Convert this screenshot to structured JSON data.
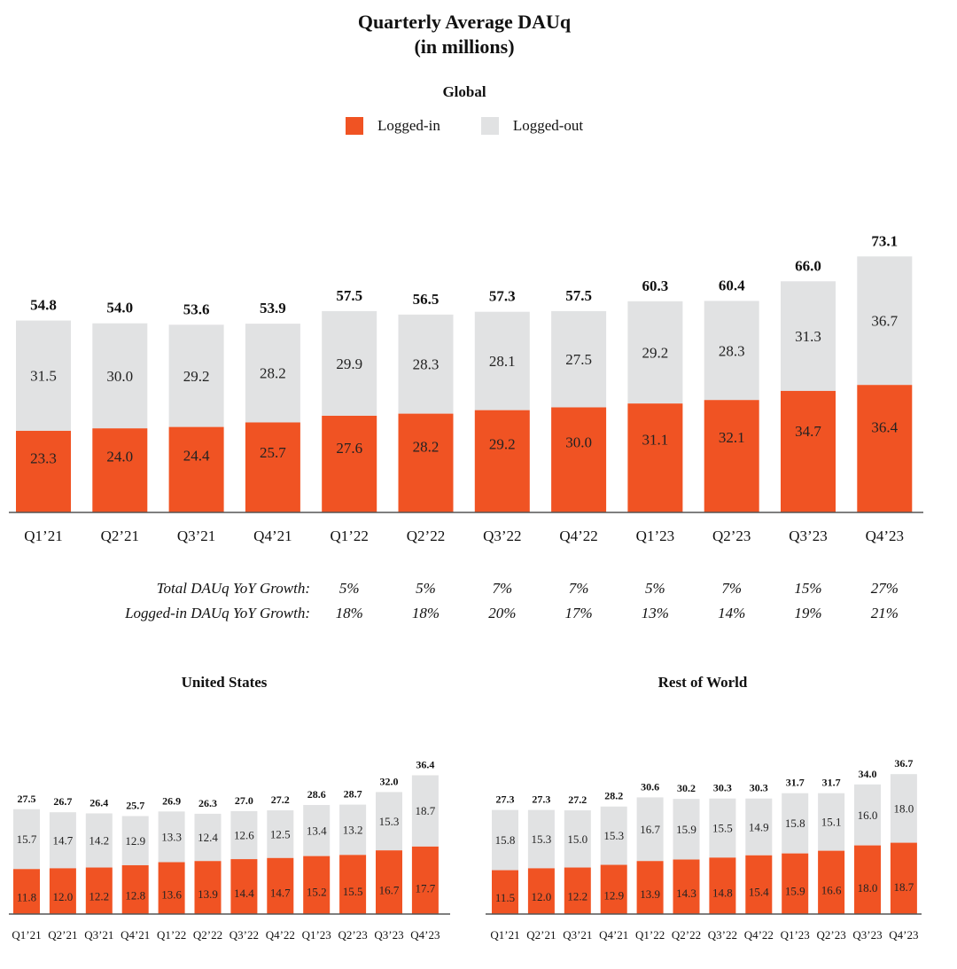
{
  "title_line1": "Quarterly Average DAUq",
  "title_line2": "(in millions)",
  "legend": {
    "logged_in": "Logged-in",
    "logged_out": "Logged-out"
  },
  "colors": {
    "logged_in": "#F05323",
    "logged_out": "#E1E2E3",
    "axis": "#555555"
  },
  "chart_data": [
    {
      "type": "bar",
      "stacked": true,
      "title": "Global",
      "categories": [
        "Q1’21",
        "Q2’21",
        "Q3’21",
        "Q4’21",
        "Q1’22",
        "Q2’22",
        "Q3’22",
        "Q4’22",
        "Q1’23",
        "Q2’23",
        "Q3’23",
        "Q4’23"
      ],
      "series": [
        {
          "name": "Logged-in",
          "values": [
            23.3,
            24.0,
            24.4,
            25.7,
            27.6,
            28.2,
            29.2,
            30.0,
            31.1,
            32.1,
            34.7,
            36.4
          ]
        },
        {
          "name": "Logged-out",
          "values": [
            31.5,
            30.0,
            29.2,
            28.2,
            29.9,
            28.3,
            28.1,
            27.5,
            29.2,
            28.3,
            31.3,
            36.7
          ]
        }
      ],
      "totals": [
        54.8,
        54.0,
        53.6,
        53.9,
        57.5,
        56.5,
        57.3,
        57.5,
        60.3,
        60.4,
        66.0,
        73.1
      ]
    },
    {
      "type": "bar",
      "stacked": true,
      "title": "United States",
      "categories": [
        "Q1’21",
        "Q2’21",
        "Q3’21",
        "Q4’21",
        "Q1’22",
        "Q2’22",
        "Q3’22",
        "Q4’22",
        "Q1’23",
        "Q2’23",
        "Q3’23",
        "Q4’23"
      ],
      "series": [
        {
          "name": "Logged-in",
          "values": [
            11.8,
            12.0,
            12.2,
            12.8,
            13.6,
            13.9,
            14.4,
            14.7,
            15.2,
            15.5,
            16.7,
            17.7
          ]
        },
        {
          "name": "Logged-out",
          "values": [
            15.7,
            14.7,
            14.2,
            12.9,
            13.3,
            12.4,
            12.6,
            12.5,
            13.4,
            13.2,
            15.3,
            18.7
          ]
        }
      ],
      "totals": [
        27.5,
        26.7,
        26.4,
        25.7,
        26.9,
        26.3,
        27.0,
        27.2,
        28.6,
        28.7,
        32.0,
        36.4
      ]
    },
    {
      "type": "bar",
      "stacked": true,
      "title": "Rest of World",
      "categories": [
        "Q1’21",
        "Q2’21",
        "Q3’21",
        "Q4’21",
        "Q1’22",
        "Q2’22",
        "Q3’22",
        "Q4’22",
        "Q1’23",
        "Q2’23",
        "Q3’23",
        "Q4’23"
      ],
      "series": [
        {
          "name": "Logged-in",
          "values": [
            11.5,
            12.0,
            12.2,
            12.9,
            13.9,
            14.3,
            14.8,
            15.4,
            15.9,
            16.6,
            18.0,
            18.7
          ]
        },
        {
          "name": "Logged-out",
          "values": [
            15.8,
            15.3,
            15.0,
            15.3,
            16.7,
            15.9,
            15.5,
            14.9,
            15.8,
            15.1,
            16.0,
            18.0
          ]
        }
      ],
      "totals": [
        27.3,
        27.3,
        27.2,
        28.2,
        30.6,
        30.2,
        30.3,
        30.3,
        31.7,
        31.7,
        34.0,
        36.7
      ]
    }
  ],
  "growth": {
    "total_label": "Total DAUq YoY Growth:",
    "loggedin_label": "Logged-in DAUq YoY Growth:",
    "total": [
      "5%",
      "5%",
      "7%",
      "7%",
      "5%",
      "7%",
      "15%",
      "27%"
    ],
    "loggedin": [
      "18%",
      "18%",
      "20%",
      "17%",
      "13%",
      "14%",
      "19%",
      "21%"
    ]
  }
}
